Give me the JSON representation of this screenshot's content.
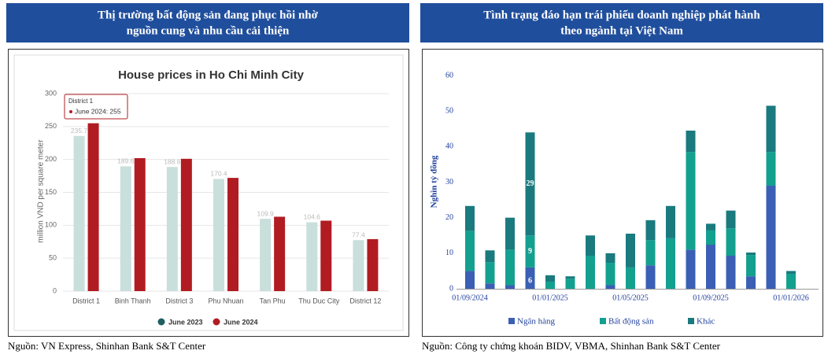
{
  "panels": [
    {
      "header": [
        "Thị trường bất động sản đang phục hồi nhờ",
        "nguồn cung và nhu cầu cải thiện"
      ],
      "source": "Nguồn: VN Express, Shinhan Bank S&T Center"
    },
    {
      "header": [
        "Tình trạng đáo hạn trái phiếu doanh nghiệp phát hành",
        "theo ngành tại Việt Nam"
      ],
      "source": "Nguồn: Công ty chứng khoán BIDV, VBMA, Shinhan Bank S&T Center"
    }
  ],
  "chart_data": [
    {
      "type": "bar",
      "title": "House prices in Ho Chi Minh City",
      "y_label": "million VND per square meter",
      "categories": [
        "District 1",
        "Binh Thanh",
        "District 3",
        "Phu Nhuan",
        "Tan Phu",
        "Thu Duc City",
        "District 12"
      ],
      "series": [
        {
          "name": "June 2023",
          "color": "#c9dfdc",
          "legend_color": "#1f5f60",
          "data_labels": true,
          "values": [
            235.7,
            189.6,
            188.6,
            170.4,
            109.9,
            104.6,
            77.4
          ]
        },
        {
          "name": "June 2024",
          "color": "#b01c22",
          "legend_color": "#b01c22",
          "data_labels": false,
          "values": [
            255,
            202,
            201,
            172,
            113,
            107,
            79
          ]
        }
      ],
      "ylim": [
        0,
        300
      ],
      "yticks": [
        0,
        50,
        100,
        150,
        200,
        250,
        300
      ],
      "grid": true,
      "annotations": [
        {
          "title": "District 1",
          "text": "June 2024: 255"
        }
      ],
      "legend": "bottom"
    },
    {
      "type": "stacked_bar",
      "y_label": "Nghìn tỷ đồng",
      "categories": [
        "01/09/2024",
        null,
        null,
        null,
        "01/01/2025",
        null,
        null,
        null,
        "01/05/2025",
        null,
        null,
        null,
        "01/09/2025",
        null,
        null,
        null,
        "01/01/2026"
      ],
      "series": [
        {
          "name": "Ngân hàng",
          "color": "#3a5fb4",
          "values": [
            5,
            1.5,
            1,
            6,
            0,
            0,
            0,
            1,
            0,
            6.6,
            0,
            11,
            12.4,
            9.3,
            3.5,
            29,
            0
          ],
          "value_labels": [
            null,
            null,
            null,
            "6",
            null,
            null,
            null,
            null,
            null,
            null,
            null,
            null,
            null,
            null,
            null,
            null,
            null
          ]
        },
        {
          "name": "Bất động sản",
          "color": "#14a08f",
          "values": [
            11.3,
            6,
            10,
            9,
            2,
            2.8,
            9.3,
            6.3,
            6,
            7.1,
            14.2,
            27.5,
            4,
            7.7,
            6,
            9.5,
            4.2
          ],
          "value_labels": [
            null,
            null,
            null,
            "9",
            null,
            null,
            null,
            null,
            null,
            null,
            null,
            null,
            null,
            null,
            null,
            null,
            null
          ]
        },
        {
          "name": "Khác",
          "color": "#1a7a7e",
          "values": [
            7,
            3.3,
            9,
            29,
            1.8,
            0.7,
            5.7,
            2.7,
            9.5,
            5.6,
            9.1,
            6,
            1.9,
            5,
            0.7,
            13,
            0.8
          ],
          "value_labels": [
            null,
            null,
            null,
            "29",
            null,
            null,
            null,
            null,
            null,
            null,
            null,
            null,
            null,
            null,
            null,
            null,
            null
          ]
        }
      ],
      "ylim": [
        0,
        60
      ],
      "yticks": [
        0,
        10,
        20,
        30,
        40,
        50,
        60
      ],
      "grid": false,
      "legend": "bottom"
    }
  ]
}
